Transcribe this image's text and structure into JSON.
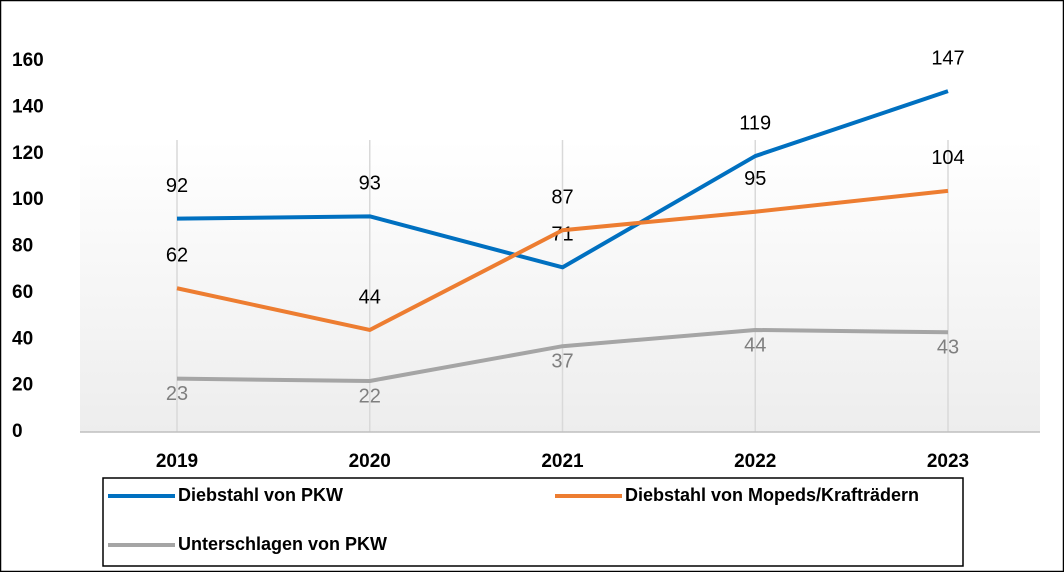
{
  "chart_data": {
    "type": "line",
    "categories": [
      "2019",
      "2020",
      "2021",
      "2022",
      "2023"
    ],
    "series": [
      {
        "name": "Diebstahl von PKW",
        "color": "#0070c0",
        "values": [
          92,
          93,
          71,
          119,
          147
        ]
      },
      {
        "name": "Diebstahl von Mopeds/Krafträdern",
        "color": "#ed7d31",
        "values": [
          62,
          44,
          87,
          95,
          104
        ]
      },
      {
        "name": "Unterschlagen von PKW",
        "color": "#a5a5a5",
        "values": [
          23,
          22,
          37,
          44,
          43
        ]
      }
    ],
    "ylim": [
      0,
      160
    ],
    "yticks": [
      0,
      20,
      40,
      60,
      80,
      100,
      120,
      140,
      160
    ],
    "grid": false,
    "legend": "bottom"
  }
}
